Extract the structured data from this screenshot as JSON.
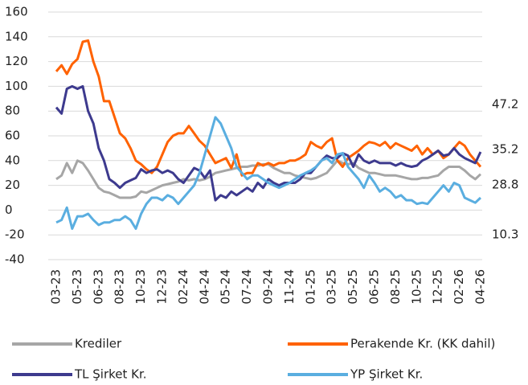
{
  "chart_data": {
    "type": "line",
    "categories": [
      "03-23",
      null,
      null,
      null,
      "05-23",
      null,
      null,
      null,
      "06-23",
      null,
      null,
      null,
      "08-23",
      null,
      null,
      null,
      "10-23",
      null,
      null,
      null,
      "12-23",
      null,
      null,
      null,
      "02-24",
      null,
      null,
      null,
      "04-24",
      null,
      null,
      null,
      "05-24",
      null,
      null,
      null,
      "07-24",
      null,
      null,
      null,
      "09-24",
      null,
      null,
      null,
      "11-24",
      null,
      null,
      null,
      "01-25",
      null,
      null,
      null,
      "03-25",
      null,
      null,
      null,
      "05-25",
      null,
      null,
      null,
      "06-25",
      null,
      null,
      null,
      "08-25",
      null,
      null,
      null,
      "10-25",
      null,
      null,
      null,
      "12-25",
      null,
      null,
      null,
      "02-26",
      null,
      null,
      null,
      "04-26"
    ],
    "series": [
      {
        "name": "Krediler",
        "color": "#a6a6a6",
        "values": [
          25,
          28,
          38,
          30,
          40,
          38,
          32,
          25,
          18,
          15,
          14,
          12,
          10,
          10,
          10,
          11,
          15,
          14,
          16,
          18,
          20,
          21,
          22,
          23,
          25,
          24,
          25,
          24,
          25,
          27,
          30,
          31,
          32,
          33,
          34,
          35,
          35,
          36,
          36,
          37,
          37,
          34,
          32,
          30,
          30,
          28,
          27,
          26,
          25,
          26,
          28,
          30,
          35,
          40,
          38,
          37,
          38,
          34,
          32,
          30,
          30,
          29,
          28,
          28,
          28,
          27,
          26,
          25,
          25,
          26,
          26,
          27,
          28,
          32,
          35,
          35,
          35,
          32,
          28,
          25,
          29
        ]
      },
      {
        "name": "Perakende Kr. (KK dahil)",
        "color": "#ff6200",
        "values": [
          112,
          117,
          110,
          118,
          122,
          136,
          137,
          120,
          108,
          88,
          88,
          75,
          62,
          58,
          50,
          40,
          37,
          33,
          30,
          35,
          45,
          55,
          60,
          62,
          62,
          68,
          62,
          56,
          52,
          45,
          38,
          40,
          42,
          34,
          45,
          28,
          30,
          30,
          38,
          36,
          38,
          36,
          38,
          38,
          40,
          40,
          42,
          45,
          55,
          52,
          50,
          55,
          58,
          40,
          35,
          42,
          45,
          48,
          52,
          55,
          54,
          52,
          55,
          50,
          54,
          52,
          50,
          48,
          52,
          45,
          50,
          45,
          48,
          42,
          45,
          50,
          55,
          52,
          45,
          40,
          35
        ]
      },
      {
        "name": "TL Şirket Kr.",
        "color": "#3d3a8e",
        "values": [
          83,
          78,
          98,
          100,
          98,
          100,
          80,
          70,
          50,
          40,
          25,
          22,
          18,
          22,
          24,
          26,
          33,
          30,
          32,
          33,
          30,
          32,
          30,
          25,
          22,
          28,
          34,
          32,
          26,
          32,
          8,
          12,
          10,
          15,
          12,
          15,
          18,
          15,
          22,
          18,
          25,
          22,
          20,
          22,
          22,
          22,
          25,
          30,
          30,
          35,
          40,
          44,
          42,
          42,
          46,
          44,
          35,
          45,
          40,
          38,
          40,
          38,
          38,
          38,
          36,
          38,
          36,
          35,
          36,
          40,
          42,
          45,
          48,
          44,
          45,
          50,
          45,
          42,
          40,
          38,
          47
        ]
      },
      {
        "name": "YP Şirket Kr.",
        "color": "#5aaee0",
        "values": [
          -10,
          -8,
          2,
          -15,
          -5,
          -5,
          -3,
          -8,
          -12,
          -10,
          -10,
          -8,
          -8,
          -5,
          -8,
          -15,
          -3,
          5,
          10,
          10,
          8,
          12,
          10,
          5,
          10,
          15,
          20,
          30,
          45,
          60,
          75,
          70,
          60,
          50,
          35,
          30,
          25,
          28,
          28,
          25,
          22,
          20,
          18,
          20,
          22,
          25,
          28,
          30,
          32,
          35,
          40,
          42,
          38,
          45,
          46,
          35,
          30,
          25,
          18,
          28,
          22,
          15,
          18,
          15,
          10,
          12,
          8,
          8,
          5,
          6,
          5,
          10,
          15,
          20,
          15,
          22,
          20,
          10,
          8,
          6,
          10
        ]
      }
    ],
    "annotations": [
      "47.2",
      "35.2",
      "28.8",
      "10.3"
    ],
    "ylim": [
      -40,
      160
    ],
    "yticks": [
      -40,
      -20,
      0,
      20,
      40,
      60,
      80,
      100,
      120,
      140,
      160
    ],
    "grid": true
  }
}
